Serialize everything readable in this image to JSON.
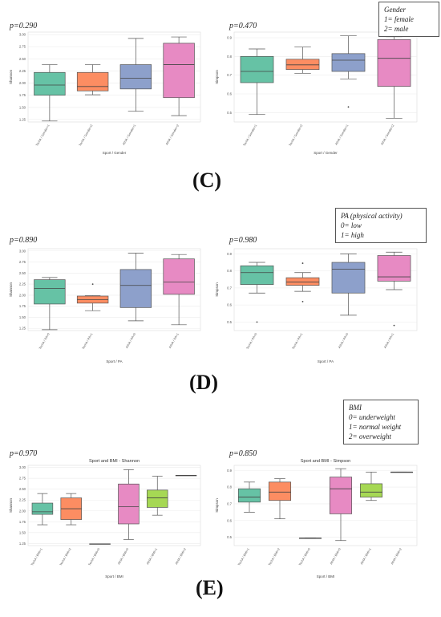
{
  "panels": [
    {
      "label": "(C)"
    },
    {
      "label": "(D)"
    },
    {
      "label": "(E)"
    }
  ],
  "legends": {
    "gender": [
      "Gender",
      "1= female",
      "2= male"
    ],
    "pa": [
      "PA (physical activity)",
      "0= low",
      "1= high"
    ],
    "bmi": [
      "BMI",
      "0= underweight",
      "1= normal weight",
      "2= overweight"
    ]
  },
  "colors": {
    "green": "#66c2a5",
    "orange": "#fc8d62",
    "blue": "#8da0cb",
    "pink": "#e78ac3",
    "lime": "#a6d854"
  },
  "chart_data": [
    {
      "type": "box",
      "pvalue": "p=0.290",
      "title": "",
      "xlabel": "Sport / Gender",
      "ylabel": "Shannon",
      "ylim": [
        1.2,
        3.05
      ],
      "yticks": [
        "1.25",
        "1.50",
        "1.75",
        "2.00",
        "2.25",
        "2.50",
        "2.75",
        "3.00"
      ],
      "categories": [
        "TechA / Gender=1",
        "TechA / Gender=2",
        "AthlA / Gender=1",
        "AthlA / Gender=2"
      ],
      "boxes": [
        {
          "min": 1.22,
          "q1": 1.75,
          "median": 1.96,
          "q3": 2.22,
          "max": 2.38,
          "color": "green"
        },
        {
          "min": 1.76,
          "q1": 1.84,
          "median": 1.93,
          "q3": 2.22,
          "max": 2.38,
          "color": "orange"
        },
        {
          "min": 1.42,
          "q1": 1.88,
          "median": 2.1,
          "q3": 2.38,
          "max": 2.92,
          "color": "blue"
        },
        {
          "min": 1.33,
          "q1": 1.7,
          "median": 2.38,
          "q3": 2.82,
          "max": 2.95,
          "color": "pink"
        }
      ]
    },
    {
      "type": "box",
      "pvalue": "p=0.470",
      "title": "",
      "xlabel": "Sport / Gender",
      "ylabel": "Simpson",
      "ylim": [
        0.45,
        0.93
      ],
      "yticks": [
        "0.5",
        "0.6",
        "0.7",
        "0.8",
        "0.9"
      ],
      "categories": [
        "TechA / Gender=1",
        "TechA / Gender=2",
        "AthlA / Gender=1",
        "AthlA / Gender=2"
      ],
      "boxes": [
        {
          "min": 0.49,
          "q1": 0.66,
          "median": 0.72,
          "q3": 0.8,
          "max": 0.84,
          "color": "green"
        },
        {
          "min": 0.71,
          "q1": 0.73,
          "median": 0.755,
          "q3": 0.785,
          "max": 0.85,
          "color": "orange"
        },
        {
          "min": 0.68,
          "q1": 0.72,
          "median": 0.78,
          "q3": 0.815,
          "max": 0.91,
          "color": "blue",
          "outliers": [
            0.53
          ]
        },
        {
          "min": 0.47,
          "q1": 0.64,
          "median": 0.79,
          "q3": 0.89,
          "max": 0.905,
          "color": "pink"
        }
      ]
    },
    {
      "type": "box",
      "pvalue": "p=0.890",
      "title": "",
      "xlabel": "Sport / PA",
      "ylabel": "Shannon",
      "ylim": [
        1.2,
        3.05
      ],
      "yticks": [
        "1.25",
        "1.50",
        "1.75",
        "2.00",
        "2.25",
        "2.50",
        "2.75",
        "3.00"
      ],
      "categories": [
        "TechA / PA=0",
        "TechA / PA=1",
        "AthlA / PA=0",
        "AthlA / PA=1"
      ],
      "boxes": [
        {
          "min": 1.22,
          "q1": 1.8,
          "median": 2.15,
          "q3": 2.35,
          "max": 2.4,
          "color": "green"
        },
        {
          "min": 1.65,
          "q1": 1.82,
          "median": 1.9,
          "q3": 1.98,
          "max": 1.99,
          "color": "orange",
          "outliers": [
            2.25
          ]
        },
        {
          "min": 1.42,
          "q1": 1.72,
          "median": 2.22,
          "q3": 2.58,
          "max": 2.95,
          "color": "blue"
        },
        {
          "min": 1.33,
          "q1": 2.02,
          "median": 2.3,
          "q3": 2.82,
          "max": 2.92,
          "color": "pink"
        }
      ]
    },
    {
      "type": "box",
      "pvalue": "p=0.980",
      "title": "",
      "xlabel": "Sport / PA",
      "ylabel": "Simpson",
      "ylim": [
        0.45,
        0.93
      ],
      "yticks": [
        "0.5",
        "0.6",
        "0.7",
        "0.8",
        "0.9"
      ],
      "categories": [
        "TechA / PA=0",
        "TechA / PA=1",
        "AthlA / PA=0",
        "AthlA / PA=1"
      ],
      "boxes": [
        {
          "min": 0.67,
          "q1": 0.72,
          "median": 0.79,
          "q3": 0.83,
          "max": 0.85,
          "color": "green",
          "outliers": [
            0.5
          ]
        },
        {
          "min": 0.68,
          "q1": 0.715,
          "median": 0.735,
          "q3": 0.76,
          "max": 0.79,
          "color": "orange",
          "outliers": [
            0.62,
            0.845
          ]
        },
        {
          "min": 0.54,
          "q1": 0.67,
          "median": 0.81,
          "q3": 0.85,
          "max": 0.9,
          "color": "blue"
        },
        {
          "min": 0.69,
          "q1": 0.74,
          "median": 0.765,
          "q3": 0.89,
          "max": 0.91,
          "color": "pink",
          "outliers": [
            0.48
          ]
        }
      ]
    },
    {
      "type": "box",
      "pvalue": "p=0.970",
      "title": "Sport and BMI - Shannon",
      "xlabel": "Sport / BMI",
      "ylabel": "Shannon",
      "ylim": [
        1.2,
        3.05
      ],
      "yticks": [
        "1.25",
        "1.50",
        "1.75",
        "2.00",
        "2.25",
        "2.50",
        "2.75",
        "3.00"
      ],
      "categories": [
        "TechA / BMI=1",
        "TechA / BMI=2",
        "TechA / BMI=0",
        "AthlA / BMI=0",
        "AthlA / BMI=1",
        "AthlA / BMI=2"
      ],
      "boxes": [
        {
          "min": 1.68,
          "q1": 1.92,
          "median": 1.98,
          "q3": 2.18,
          "max": 2.4,
          "color": "green"
        },
        {
          "min": 1.68,
          "q1": 1.8,
          "median": 2.05,
          "q3": 2.3,
          "max": 2.4,
          "color": "orange"
        },
        {
          "min": 1.24,
          "q1": 1.24,
          "median": 1.24,
          "q3": 1.24,
          "max": 1.24,
          "color": "blue"
        },
        {
          "min": 1.34,
          "q1": 1.7,
          "median": 2.1,
          "q3": 2.62,
          "max": 2.95,
          "color": "pink"
        },
        {
          "min": 1.9,
          "q1": 2.08,
          "median": 2.3,
          "q3": 2.48,
          "max": 2.8,
          "color": "lime"
        },
        {
          "min": 2.82,
          "q1": 2.82,
          "median": 2.82,
          "q3": 2.82,
          "max": 2.82,
          "color": "orange"
        }
      ]
    },
    {
      "type": "box",
      "pvalue": "p=0.850",
      "title": "Sport and BMI - Simpson",
      "xlabel": "Sport / BMI",
      "ylabel": "Simpson",
      "ylim": [
        0.45,
        0.93
      ],
      "yticks": [
        "0.5",
        "0.6",
        "0.7",
        "0.8",
        "0.9"
      ],
      "categories": [
        "TechA / BMI=1",
        "TechA / BMI=2",
        "TechA / BMI=0",
        "AthlA / BMI=0",
        "AthlA / BMI=1",
        "AthlA / BMI=2"
      ],
      "boxes": [
        {
          "min": 0.65,
          "q1": 0.71,
          "median": 0.74,
          "q3": 0.79,
          "max": 0.83,
          "color": "green"
        },
        {
          "min": 0.61,
          "q1": 0.72,
          "median": 0.77,
          "q3": 0.83,
          "max": 0.85,
          "color": "orange"
        },
        {
          "min": 0.495,
          "q1": 0.495,
          "median": 0.495,
          "q3": 0.495,
          "max": 0.495,
          "color": "blue"
        },
        {
          "min": 0.48,
          "q1": 0.64,
          "median": 0.79,
          "q3": 0.86,
          "max": 0.91,
          "color": "pink"
        },
        {
          "min": 0.72,
          "q1": 0.74,
          "median": 0.77,
          "q3": 0.82,
          "max": 0.89,
          "color": "lime"
        },
        {
          "min": 0.89,
          "q1": 0.89,
          "median": 0.89,
          "q3": 0.89,
          "max": 0.89,
          "color": "orange"
        }
      ]
    }
  ]
}
